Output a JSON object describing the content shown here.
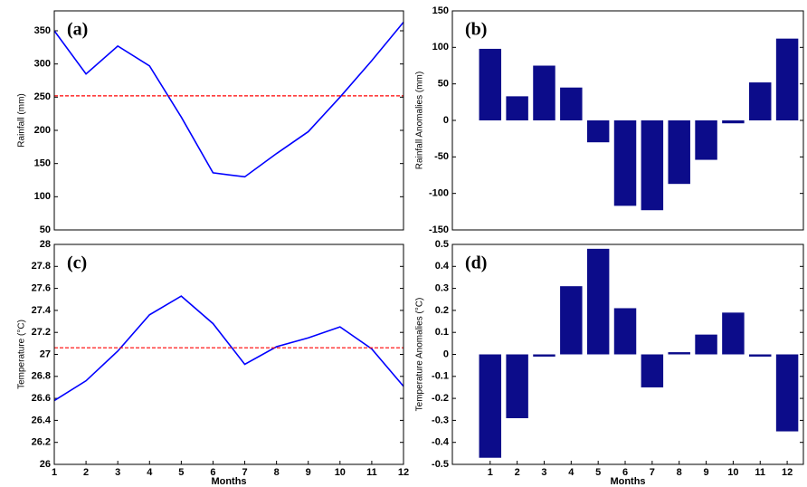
{
  "chart_data": [
    {
      "type": "line",
      "panel_label": "(a)",
      "ylabel": "Rainfall (mm)",
      "color": "#0000ff",
      "x": [
        1,
        2,
        3,
        4,
        5,
        6,
        7,
        8,
        9,
        10,
        11,
        12
      ],
      "values": [
        350,
        285,
        327,
        297,
        220,
        136,
        130,
        165,
        198,
        250,
        305,
        363
      ],
      "xlim": [
        1,
        12
      ],
      "ylim": [
        50,
        380
      ],
      "yticks": [
        50,
        100,
        150,
        200,
        250,
        300,
        350
      ],
      "reference_line": {
        "value": 252,
        "color": "#ff0000"
      }
    },
    {
      "type": "bar",
      "panel_label": "(b)",
      "ylabel": "Rainfall Anomalies (mm)",
      "color": "#0c0c8a",
      "x": [
        1,
        2,
        3,
        4,
        5,
        6,
        7,
        8,
        9,
        10,
        11,
        12
      ],
      "values": [
        98,
        33,
        75,
        45,
        -30,
        -117,
        -123,
        -87,
        -54,
        -4,
        52,
        112
      ],
      "xlim": [
        -0.4,
        12.6
      ],
      "ylim": [
        -150,
        150
      ],
      "yticks": [
        -150,
        -100,
        -50,
        0,
        50,
        100,
        150
      ]
    },
    {
      "type": "line",
      "panel_label": "(c)",
      "ylabel": "Temperature (°C)",
      "xlabel": "Months",
      "color": "#0000ff",
      "x": [
        1,
        2,
        3,
        4,
        5,
        6,
        7,
        8,
        9,
        10,
        11,
        12
      ],
      "values": [
        26.58,
        26.76,
        27.03,
        27.36,
        27.53,
        27.28,
        26.91,
        27.07,
        27.15,
        27.25,
        27.05,
        26.71
      ],
      "xlim": [
        1,
        12
      ],
      "xticks": [
        1,
        2,
        3,
        4,
        5,
        6,
        7,
        8,
        9,
        10,
        11,
        12
      ],
      "ylim": [
        26,
        28
      ],
      "yticks": [
        26,
        26.2,
        26.4,
        26.6,
        26.8,
        27,
        27.2,
        27.4,
        27.6,
        27.8,
        28
      ],
      "reference_line": {
        "value": 27.06,
        "color": "#ff0000"
      }
    },
    {
      "type": "bar",
      "panel_label": "(d)",
      "ylabel": "Temperature Anomalies (°C)",
      "xlabel": "Months",
      "color": "#0c0c8a",
      "x": [
        1,
        2,
        3,
        4,
        5,
        6,
        7,
        8,
        9,
        10,
        11,
        12
      ],
      "values": [
        -0.47,
        -0.29,
        -0.01,
        0.31,
        0.48,
        0.21,
        -0.15,
        0.01,
        0.09,
        0.19,
        -0.01,
        -0.35
      ],
      "xlim": [
        -0.4,
        12.6
      ],
      "xticks": [
        1,
        2,
        3,
        4,
        5,
        6,
        7,
        8,
        9,
        10,
        11,
        12
      ],
      "ylim": [
        -0.5,
        0.5
      ],
      "yticks": [
        -0.5,
        -0.4,
        -0.3,
        -0.2,
        -0.1,
        0,
        0.1,
        0.2,
        0.3,
        0.4,
        0.5
      ]
    }
  ]
}
